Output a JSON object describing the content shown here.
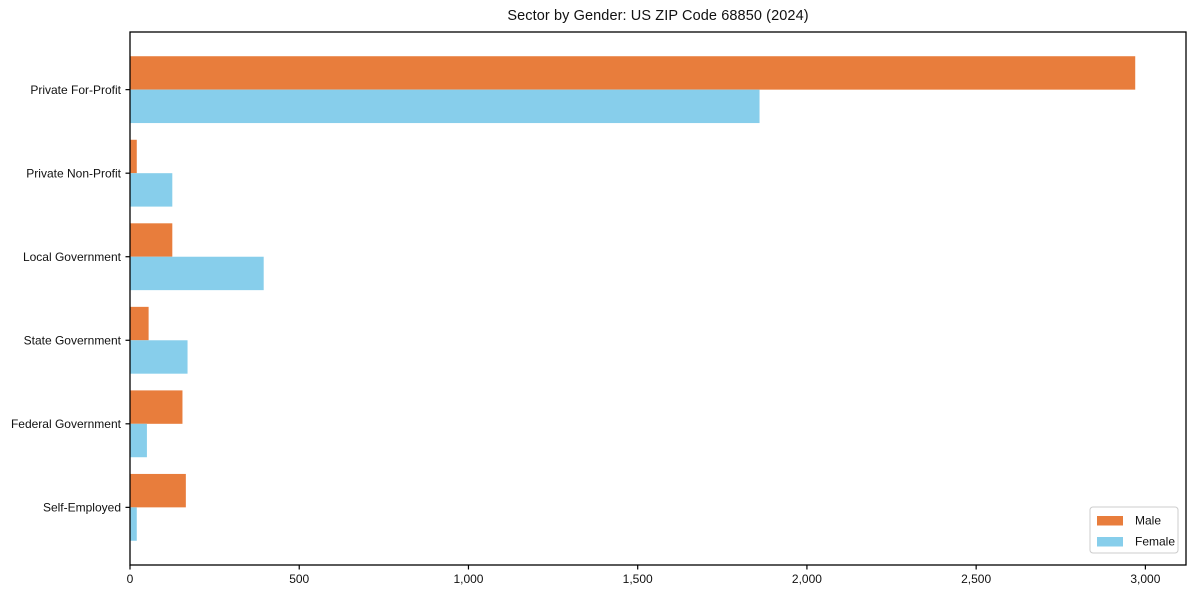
{
  "chart_data": {
    "type": "bar",
    "orientation": "horizontal",
    "title": "Sector by Gender: US ZIP Code 68850 (2024)",
    "categories": [
      "Private For-Profit",
      "Private Non-Profit",
      "Local Government",
      "State Government",
      "Federal Government",
      "Self-Employed"
    ],
    "series": [
      {
        "name": "Male",
        "color": "#E87D3C",
        "values": [
          2970,
          20,
          125,
          55,
          155,
          165
        ]
      },
      {
        "name": "Female",
        "color": "#87CEEB",
        "values": [
          1860,
          125,
          395,
          170,
          50,
          20
        ]
      }
    ],
    "xlabel": "",
    "ylabel": "",
    "xlim": [
      0,
      3120
    ],
    "xticks": [
      0,
      500,
      1000,
      1500,
      2000,
      2500,
      3000
    ],
    "xtick_labels": [
      "0",
      "500",
      "1,000",
      "1,500",
      "2,000",
      "2,500",
      "3,000"
    ],
    "grid": false,
    "legend_position": "lower right",
    "spine_color": "#000000",
    "background_color": "#ffffff",
    "legend_border_color": "#cccccc"
  }
}
